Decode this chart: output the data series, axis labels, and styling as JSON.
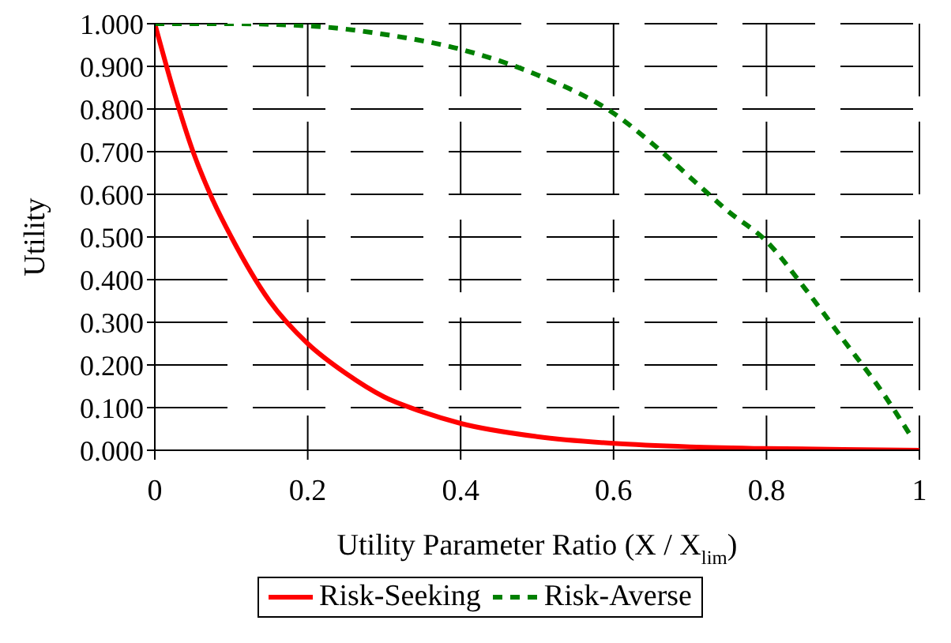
{
  "chart_data": {
    "type": "line",
    "xlabel": "Utility Parameter Ratio (X / X$_{lim}$)",
    "ylabel": "Utility",
    "xlim": [
      0,
      1
    ],
    "xticks": [
      0,
      0.2,
      0.4,
      0.6,
      0.8,
      1
    ],
    "ylim": [
      0,
      1
    ],
    "yticks": [
      {
        "value": 0,
        "label": "0.000"
      },
      {
        "value": 0.1,
        "label": "0.100"
      },
      {
        "value": 0.2,
        "label": "0.200"
      },
      {
        "value": 0.3,
        "label": "0.300"
      },
      {
        "value": 0.4,
        "label": "0.400"
      },
      {
        "value": 0.5,
        "label": "0.500"
      },
      {
        "value": 0.6,
        "label": "0.600"
      },
      {
        "value": 0.7,
        "label": "0.700"
      },
      {
        "value": 0.8,
        "label": "0.800"
      },
      {
        "value": 0.9,
        "label": "0.900"
      },
      {
        "value": 1,
        "label": "1.000"
      }
    ],
    "grid": true,
    "legend": "bottom",
    "marker": "none",
    "series": [
      {
        "name": "Risk-Seeking",
        "color": "#ff0000",
        "line_style": "solid",
        "x": [
          0,
          0.025,
          0.05,
          0.075,
          0.1,
          0.15,
          0.2,
          0.25,
          0.3,
          0.35,
          0.4,
          0.5,
          0.6,
          0.7,
          0.8,
          0.9,
          1
        ],
        "values": [
          1,
          0.84,
          0.7,
          0.59,
          0.5,
          0.35,
          0.25,
          0.18,
          0.125,
          0.09,
          0.063,
          0.032,
          0.016,
          0.008,
          0.004,
          0.002,
          0
        ]
      },
      {
        "name": "Risk-Averse",
        "color": "#008000",
        "line_style": "dashed",
        "x": [
          0,
          0.1,
          0.2,
          0.3,
          0.4,
          0.5,
          0.6,
          0.65,
          0.7,
          0.75,
          0.8,
          0.85,
          0.9,
          0.95,
          0.99
        ],
        "values": [
          1,
          1,
          0.995,
          0.975,
          0.94,
          0.88,
          0.79,
          0.72,
          0.64,
          0.56,
          0.49,
          0.38,
          0.26,
          0.14,
          0.03
        ]
      }
    ]
  }
}
